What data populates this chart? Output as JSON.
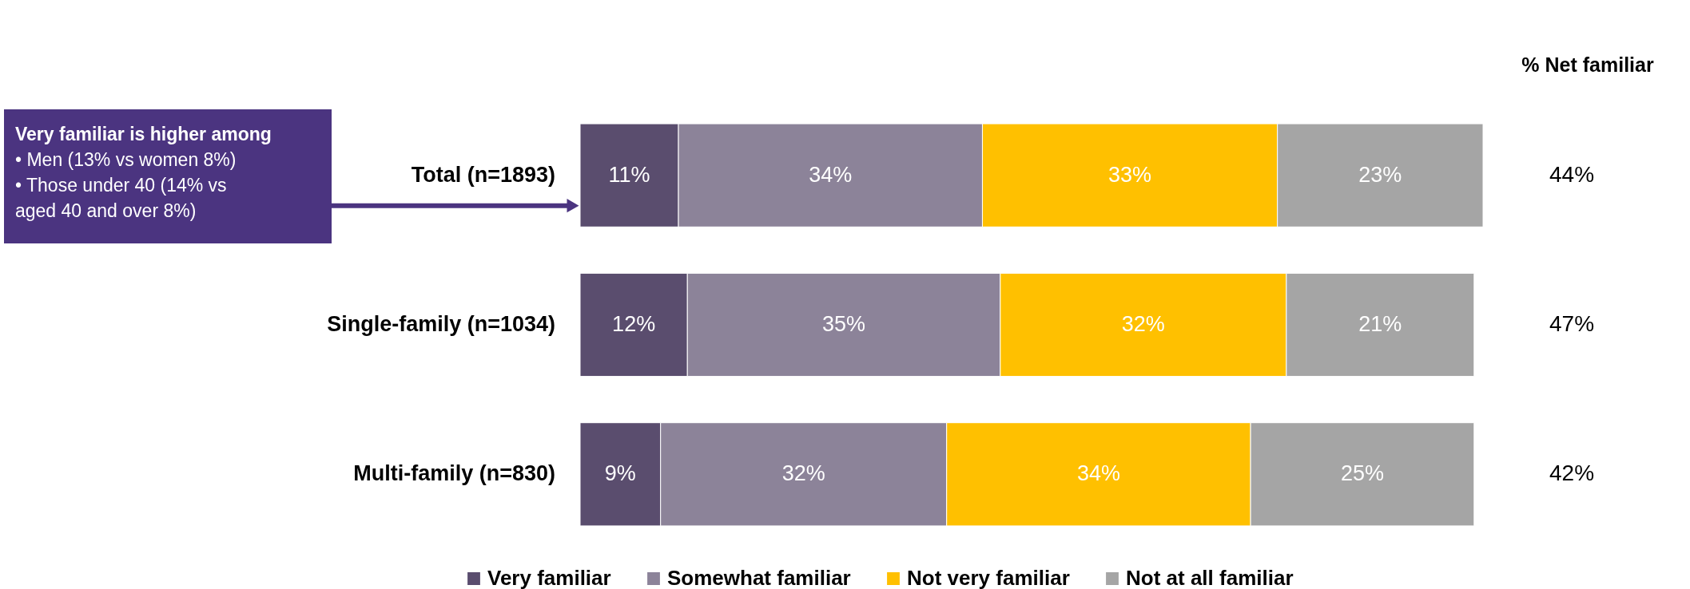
{
  "chart_data": {
    "type": "bar",
    "orientation": "horizontal",
    "stacked": true,
    "legend": "bottom",
    "tick_labels": "y",
    "categories": [
      "Total (n=1893)",
      "Single-family (n=1034)",
      "Multi-family (n=830)"
    ],
    "series": [
      {
        "name": "Very familiar",
        "color": "#5a4d6e",
        "values": [
          11,
          12,
          9
        ],
        "value_labels": [
          "11%",
          "12%",
          "9%"
        ]
      },
      {
        "name": "Somewhat familiar",
        "color": "#8c8399",
        "values": [
          34,
          35,
          32
        ],
        "value_labels": [
          "34%",
          "35%",
          "32%"
        ]
      },
      {
        "name": "Not very familiar",
        "color": "#ffc000",
        "values": [
          33,
          32,
          34
        ],
        "value_labels": [
          "33%",
          "32%",
          "34%"
        ]
      },
      {
        "name": "Not at all familiar",
        "color": "#a5a5a5",
        "values": [
          23,
          21,
          25
        ],
        "value_labels": [
          "23%",
          "21%",
          "25%"
        ]
      }
    ],
    "annotations": [
      "% Net familiar",
      "Very familiar is higher among\n•  Men (13% vs women 8%)\n•  Those under 40 (14% vs\n    aged 40 and over 8%)",
      "44%",
      "47%",
      "42%"
    ]
  }
}
